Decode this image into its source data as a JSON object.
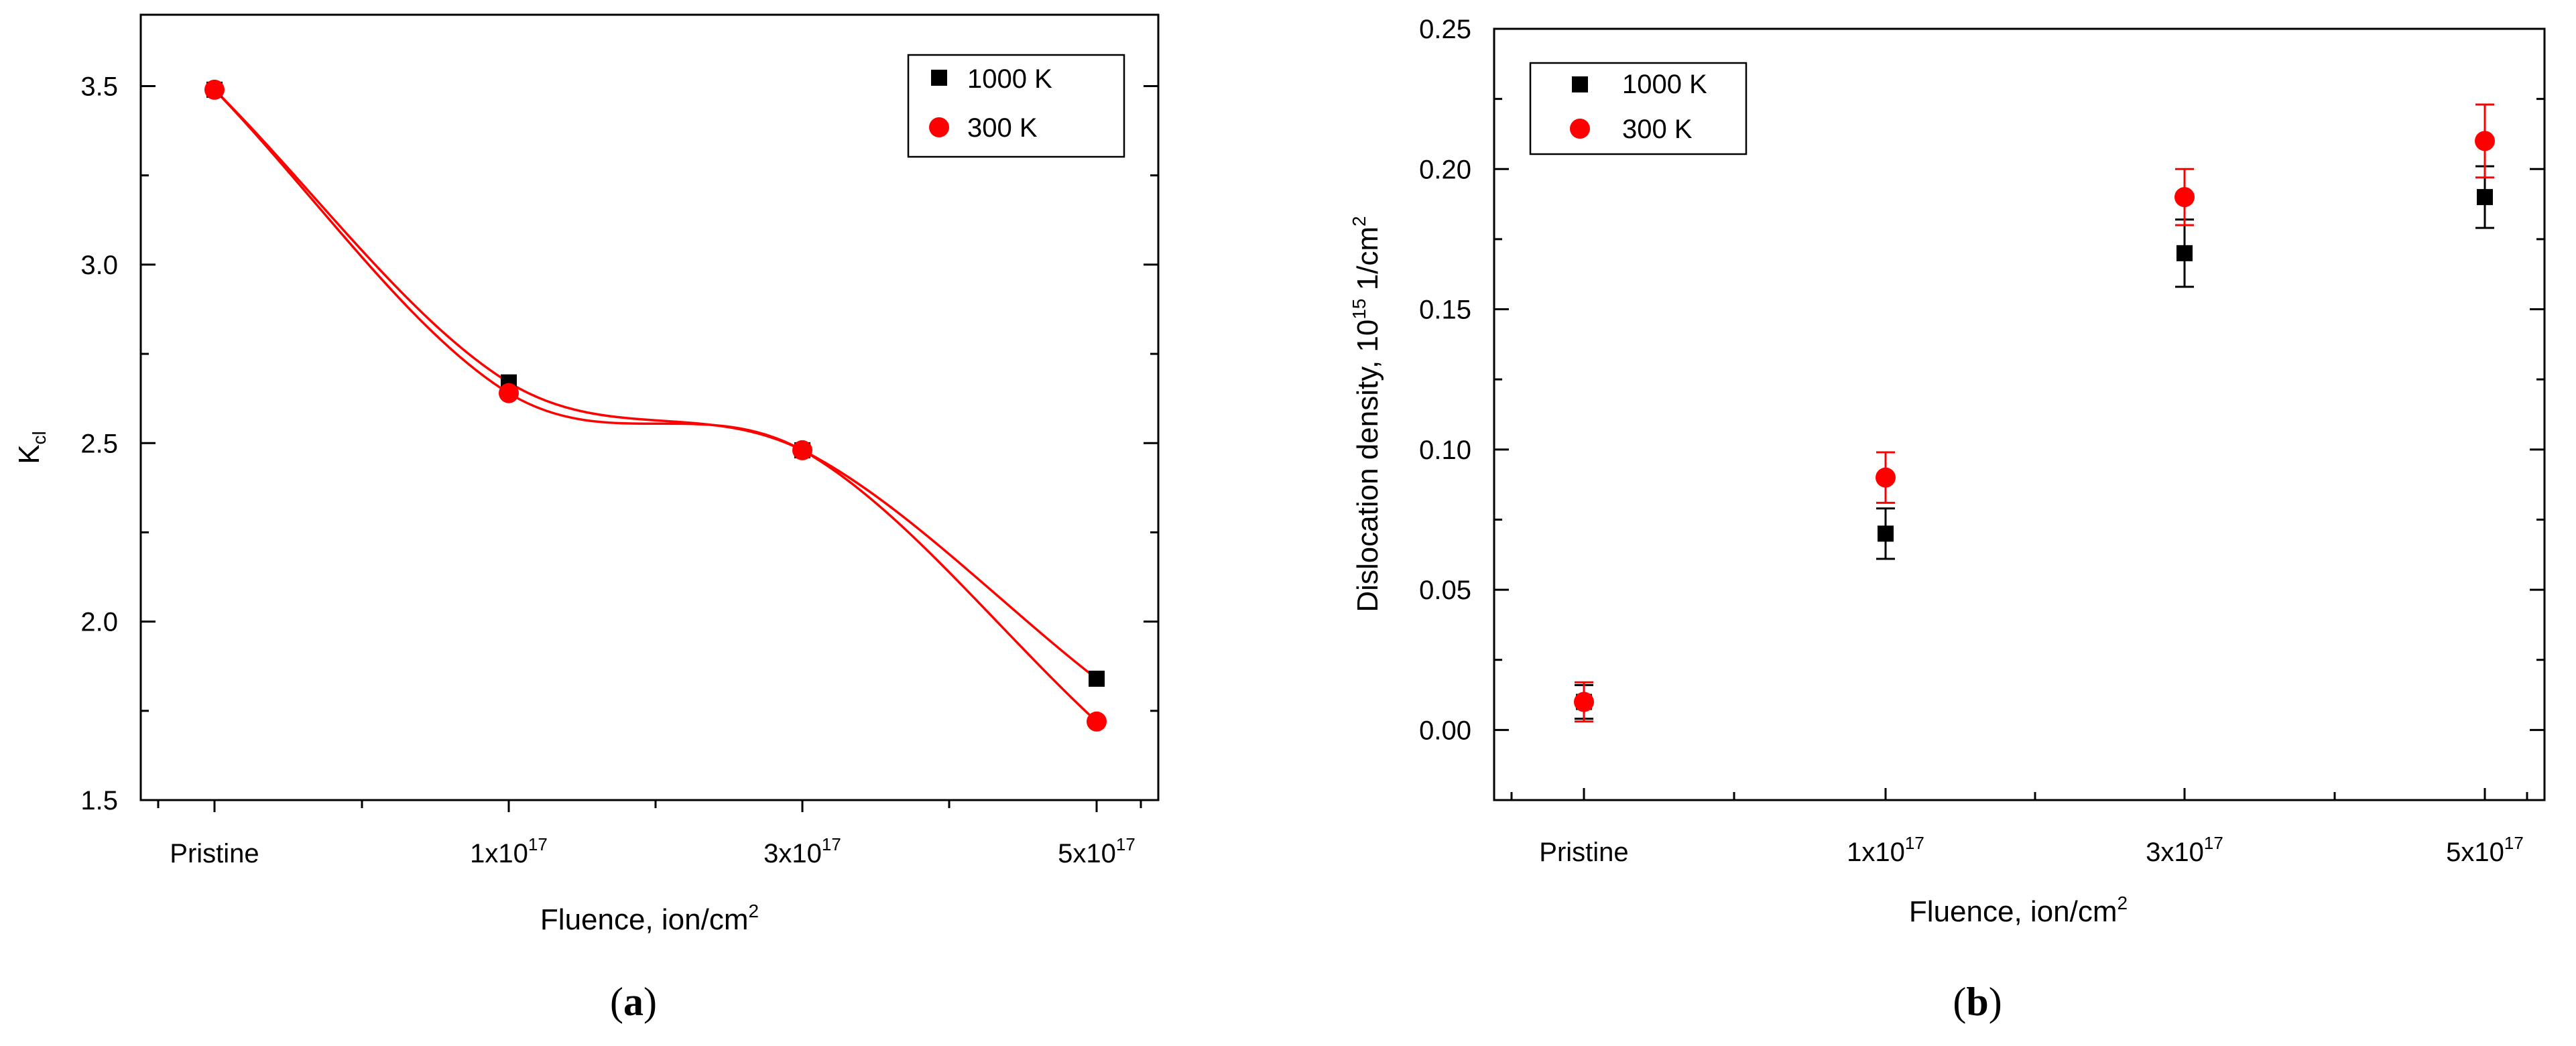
{
  "colors": {
    "black_series": "#000000",
    "red_series": "#ff0000"
  },
  "chart_data": [
    {
      "type": "scatter",
      "panel_label": "a",
      "categories": [
        "Pristine",
        "1x10",
        "3x10",
        "5x10"
      ],
      "category_superscripts": [
        "",
        "17",
        "17",
        "17"
      ],
      "xlabel": "Fluence, ion/cm",
      "xlabel_sup": "2",
      "ylabel": "K",
      "ylabel_sub": "cl",
      "ylim": [
        1.5,
        3.7
      ],
      "yticks": [
        "1.5",
        "2.0",
        "2.5",
        "3.0",
        "3.5"
      ],
      "fit_curves": true,
      "legend": [
        "1000 K",
        "300 K"
      ],
      "series": [
        {
          "name": "1000 K",
          "marker": "square",
          "values": [
            3.49,
            2.67,
            2.48,
            1.84
          ]
        },
        {
          "name": "300 K",
          "marker": "circle",
          "values": [
            3.49,
            2.64,
            2.48,
            1.72
          ]
        }
      ]
    },
    {
      "type": "scatter",
      "panel_label": "b",
      "categories": [
        "Pristine",
        "1x10",
        "3x10",
        "5x10"
      ],
      "category_superscripts": [
        "",
        "17",
        "17",
        "17"
      ],
      "xlabel": "Fluence, ion/cm",
      "xlabel_sup": "2",
      "ylabel": "Dislocation density, 10",
      "ylabel_sup1": "15",
      "ylabel_mid": " 1/cm",
      "ylabel_sup2": "2",
      "ylim": [
        -0.025,
        0.25
      ],
      "yticks": [
        "0.00",
        "0.05",
        "0.10",
        "0.15",
        "0.20",
        "0.25"
      ],
      "fit_curves": false,
      "legend": [
        "1000 K",
        "300 K"
      ],
      "series": [
        {
          "name": "1000 K",
          "marker": "square",
          "values": [
            0.01,
            0.07,
            0.17,
            0.19
          ],
          "errors": [
            0.006,
            0.009,
            0.012,
            0.011
          ]
        },
        {
          "name": "300 K",
          "marker": "circle",
          "values": [
            0.01,
            0.09,
            0.19,
            0.21
          ],
          "errors": [
            0.007,
            0.009,
            0.01,
            0.013
          ]
        }
      ]
    }
  ]
}
